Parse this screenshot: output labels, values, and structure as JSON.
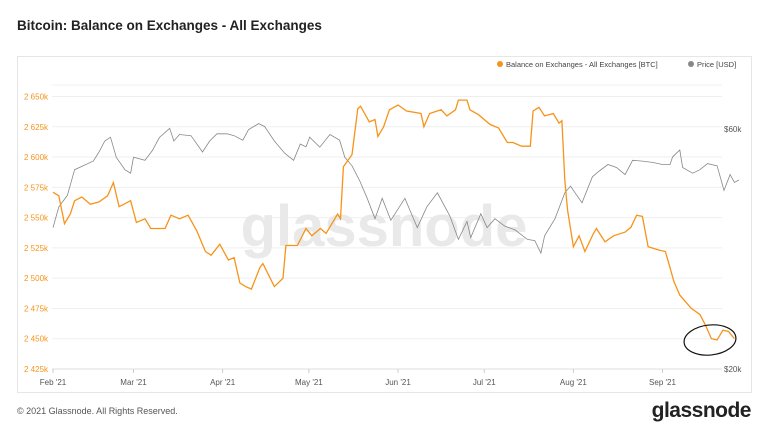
{
  "title": "Bitcoin: Balance on Exchanges - All Exchanges",
  "footer": "© 2021 Glassnode. All Rights Reserved.",
  "logo": "glassnode",
  "watermark": "glassnode",
  "chart_data": {
    "type": "line",
    "title": "Bitcoin: Balance on Exchanges - All Exchanges",
    "x_unit": "days since 2021-02-01",
    "x_ticks": [
      {
        "day": 0,
        "label": "Feb '21"
      },
      {
        "day": 28,
        "label": "Mar '21"
      },
      {
        "day": 59,
        "label": "Apr '21"
      },
      {
        "day": 89,
        "label": "May '21"
      },
      {
        "day": 120,
        "label": "Jun '21"
      },
      {
        "day": 150,
        "label": "Jul '21"
      },
      {
        "day": 181,
        "label": "Aug '21"
      },
      {
        "day": 212,
        "label": "Sep '21"
      }
    ],
    "y_left": {
      "ylim": [
        2425,
        2650
      ],
      "unit": "k BTC",
      "ticks": [
        {
          "v": 2650,
          "label": "2 650k"
        },
        {
          "v": 2625,
          "label": "2 625k"
        },
        {
          "v": 2600,
          "label": "2 600k"
        },
        {
          "v": 2575,
          "label": "2 575k"
        },
        {
          "v": 2550,
          "label": "2 550k"
        },
        {
          "v": 2525,
          "label": "2 525k"
        },
        {
          "v": 2500,
          "label": "2 500k"
        },
        {
          "v": 2475,
          "label": "2 475k"
        },
        {
          "v": 2450,
          "label": "2 450k"
        },
        {
          "v": 2425,
          "label": "2 425k"
        }
      ]
    },
    "y_right": {
      "ylim": [
        20,
        60
      ],
      "unit": "k USD",
      "scale": "log",
      "ticks": [
        {
          "v": 60,
          "label": "$60k"
        },
        {
          "v": 20,
          "label": "$20k"
        }
      ]
    },
    "grid": true,
    "legend_position": "top-right",
    "series": [
      {
        "name": "Balance on Exchanges - All Exchanges [BTC]",
        "color": "#f7931a",
        "axis": "left",
        "points": [
          [
            0,
            2571
          ],
          [
            2,
            2568
          ],
          [
            4,
            2545
          ],
          [
            6,
            2553
          ],
          [
            7.5,
            2564
          ],
          [
            10,
            2567
          ],
          [
            13,
            2561
          ],
          [
            16,
            2563
          ],
          [
            19,
            2568
          ],
          [
            21,
            2579
          ],
          [
            23,
            2559
          ],
          [
            27,
            2564
          ],
          [
            29,
            2546
          ],
          [
            32,
            2549
          ],
          [
            34,
            2541
          ],
          [
            39,
            2541
          ],
          [
            41,
            2552
          ],
          [
            44,
            2549
          ],
          [
            47,
            2552
          ],
          [
            50,
            2539
          ],
          [
            53,
            2522
          ],
          [
            55,
            2519
          ],
          [
            58,
            2528
          ],
          [
            61,
            2515
          ],
          [
            63,
            2517
          ],
          [
            65,
            2496
          ],
          [
            67,
            2493
          ],
          [
            69,
            2491
          ],
          [
            72,
            2509
          ],
          [
            73,
            2512
          ],
          [
            77,
            2493
          ],
          [
            80,
            2500
          ],
          [
            81,
            2527
          ],
          [
            85,
            2527
          ],
          [
            88,
            2541
          ],
          [
            90,
            2535
          ],
          [
            93,
            2541
          ],
          [
            95,
            2537
          ],
          [
            99,
            2553
          ],
          [
            100,
            2549
          ],
          [
            101,
            2592
          ],
          [
            104,
            2602
          ],
          [
            106,
            2640
          ],
          [
            107,
            2642
          ],
          [
            110,
            2629
          ],
          [
            112,
            2631
          ],
          [
            113,
            2617
          ],
          [
            115,
            2625
          ],
          [
            117,
            2639
          ],
          [
            120,
            2643
          ],
          [
            123,
            2638
          ],
          [
            128,
            2636
          ],
          [
            129,
            2625
          ],
          [
            131,
            2636
          ],
          [
            135,
            2639
          ],
          [
            137,
            2634
          ],
          [
            140,
            2639
          ],
          [
            141,
            2647
          ],
          [
            144,
            2647
          ],
          [
            145,
            2639
          ],
          [
            148,
            2635
          ],
          [
            152,
            2627
          ],
          [
            155,
            2624
          ],
          [
            158,
            2612
          ],
          [
            160,
            2612
          ],
          [
            163,
            2609
          ],
          [
            166,
            2609
          ],
          [
            167,
            2638
          ],
          [
            169,
            2641
          ],
          [
            171,
            2634
          ],
          [
            174,
            2636
          ],
          [
            176,
            2628
          ],
          [
            177,
            2630
          ],
          [
            178,
            2581
          ],
          [
            179,
            2556
          ],
          [
            181,
            2526
          ],
          [
            183,
            2535
          ],
          [
            185,
            2522
          ],
          [
            188,
            2537
          ],
          [
            189,
            2541
          ],
          [
            192,
            2530
          ],
          [
            195,
            2535
          ],
          [
            199,
            2538
          ],
          [
            201,
            2542
          ],
          [
            203,
            2552
          ],
          [
            205,
            2551
          ],
          [
            207,
            2526
          ],
          [
            211,
            2523
          ],
          [
            213,
            2522
          ],
          [
            216,
            2497
          ],
          [
            218,
            2486
          ],
          [
            222,
            2475
          ],
          [
            225,
            2470
          ],
          [
            227,
            2461
          ],
          [
            229,
            2450
          ],
          [
            231,
            2449
          ],
          [
            233,
            2457
          ],
          [
            235,
            2456
          ],
          [
            237,
            2450
          ]
        ]
      },
      {
        "name": "Price [USD]",
        "color": "#888888",
        "axis": "right",
        "points": [
          [
            0,
            38.2
          ],
          [
            2,
            42
          ],
          [
            5,
            44.3
          ],
          [
            7.5,
            49.8
          ],
          [
            14,
            51.8
          ],
          [
            16,
            54
          ],
          [
            18,
            56.8
          ],
          [
            20,
            57.8
          ],
          [
            22,
            52.7
          ],
          [
            25,
            49.8
          ],
          [
            27,
            49
          ],
          [
            28,
            52.7
          ],
          [
            32,
            52
          ],
          [
            34.5,
            54.3
          ],
          [
            37,
            57.7
          ],
          [
            40.6,
            60.2
          ],
          [
            42,
            56.8
          ],
          [
            44,
            58.5
          ],
          [
            48,
            58.2
          ],
          [
            52,
            54
          ],
          [
            54.5,
            56.8
          ],
          [
            57,
            58.7
          ],
          [
            60.6,
            58.7
          ],
          [
            63,
            58.2
          ],
          [
            66,
            57
          ],
          [
            68,
            59.8
          ],
          [
            71.5,
            61.5
          ],
          [
            73.6,
            60.7
          ],
          [
            77,
            56.8
          ],
          [
            80.6,
            53.7
          ],
          [
            83.7,
            52
          ],
          [
            86,
            56
          ],
          [
            88,
            55.3
          ],
          [
            89.3,
            57.8
          ],
          [
            92.8,
            55.2
          ],
          [
            96.3,
            58.5
          ],
          [
            99.7,
            57
          ],
          [
            101.5,
            52.7
          ],
          [
            104,
            50.7
          ],
          [
            106.7,
            47.3
          ],
          [
            109.3,
            43.7
          ],
          [
            112,
            39.8
          ],
          [
            114.5,
            43.7
          ],
          [
            117.5,
            39.5
          ],
          [
            122.4,
            43.7
          ],
          [
            126.7,
            38.2
          ],
          [
            130,
            42
          ],
          [
            133.7,
            44.8
          ],
          [
            138,
            40.3
          ],
          [
            141,
            36.2
          ],
          [
            144,
            39.3
          ],
          [
            145.3,
            36.5
          ],
          [
            148.8,
            40.7
          ],
          [
            151,
            38.2
          ],
          [
            153.7,
            39.8
          ],
          [
            157,
            38.5
          ],
          [
            160.7,
            37.8
          ],
          [
            165,
            36.2
          ],
          [
            167.6,
            36
          ],
          [
            169.7,
            34
          ],
          [
            171,
            36.8
          ],
          [
            174.6,
            39.8
          ],
          [
            178,
            44.8
          ],
          [
            180,
            46.2
          ],
          [
            184,
            42.8
          ],
          [
            187.6,
            48.2
          ],
          [
            190,
            49.5
          ],
          [
            193,
            51
          ],
          [
            196,
            50.3
          ],
          [
            199,
            48.7
          ],
          [
            201.6,
            52
          ],
          [
            205,
            51.8
          ],
          [
            208.5,
            51.5
          ],
          [
            212,
            51
          ],
          [
            214.6,
            51
          ],
          [
            215.5,
            52.8
          ],
          [
            218,
            54.5
          ],
          [
            219,
            50.3
          ],
          [
            222.5,
            49
          ],
          [
            225,
            49.8
          ],
          [
            227.7,
            51.2
          ],
          [
            231,
            50.7
          ],
          [
            233.4,
            45.3
          ],
          [
            235.5,
            48.7
          ],
          [
            237,
            47
          ],
          [
            238.6,
            47.5
          ]
        ]
      }
    ],
    "annotations": [
      {
        "type": "hand-drawn circle",
        "around_day": 233,
        "around_value": 2455,
        "color": "#111111"
      }
    ]
  }
}
